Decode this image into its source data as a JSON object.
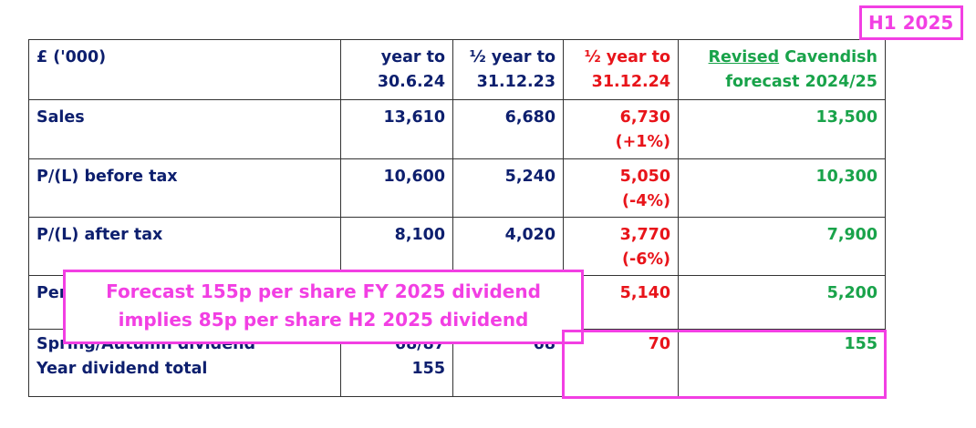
{
  "badge": "H1 2025",
  "table": {
    "headers": {
      "label": "£ ('000)",
      "col1": [
        "year to",
        "30.6.24"
      ],
      "col2": [
        "½ year to",
        "31.12.23"
      ],
      "col3": [
        "½ year to",
        "31.12.24"
      ],
      "col4_underlined": "Revised",
      "col4_rest": " Cavendish",
      "col4_line2": "forecast 2024/25"
    },
    "rows": [
      {
        "label": "Sales",
        "c1": "13,610",
        "c2": "6,680",
        "c3": "6,730",
        "c3b": "(+1%)",
        "c4": "13,500"
      },
      {
        "label": "P/(L) before tax",
        "c1": "10,600",
        "c2": "5,240",
        "c3": "5,050",
        "c3b": "(-4%)",
        "c4": "10,300"
      },
      {
        "label": "P/(L) after tax",
        "c1": "8,100",
        "c2": "4,020",
        "c3": "3,770",
        "c3b": "(-6%)",
        "c4": "7,900"
      },
      {
        "label": "Per",
        "c1": "",
        "c2": "",
        "c3": "5,140",
        "c3b": "",
        "c4": "5,200"
      }
    ],
    "dividend": {
      "label1": "Spring/Autumn dividend",
      "label2": "Year dividend total",
      "c1a": "68/87",
      "c1b": "155",
      "c2": "68",
      "c3": "70",
      "c4": "155"
    }
  },
  "callout": {
    "line1": "Forecast 155p per share FY 2025 dividend",
    "line2": "implies 85p per share H2 2025 dividend"
  },
  "colors": {
    "navy": "#0d1f6e",
    "red": "#e8141a",
    "green": "#19a34a",
    "highlight": "#f23fe3"
  }
}
